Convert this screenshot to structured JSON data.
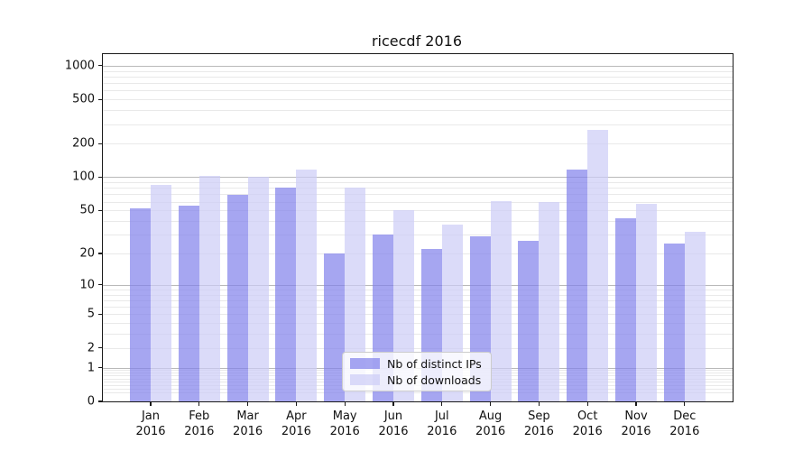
{
  "title": "ricecdf 2016",
  "colors": {
    "ips_bar": "#8080ebb3",
    "downloads_bar": "#ccccf6b3",
    "grid_major": "#b9b9b9",
    "grid_minor": "#e9e9e9",
    "axis": "#1a1a1a"
  },
  "chart_data": {
    "type": "bar",
    "title": "ricecdf 2016",
    "categories": [
      "Jan 2016",
      "Feb 2016",
      "Mar 2016",
      "Apr 2016",
      "May 2016",
      "Jun 2016",
      "Jul 2016",
      "Aug 2016",
      "Sep 2016",
      "Oct 2016",
      "Nov 2016",
      "Dec 2016"
    ],
    "series": [
      {
        "name": "Nb of distinct IPs",
        "values": [
          52,
          55,
          69,
          81,
          20,
          30,
          22,
          29,
          26,
          116,
          42,
          25
        ]
      },
      {
        "name": "Nb of downloads",
        "values": [
          85,
          103,
          100,
          117,
          80,
          50,
          37,
          61,
          59,
          268,
          57,
          32
        ]
      }
    ],
    "yscale": "log1p",
    "yticks": [
      0,
      1,
      2,
      5,
      10,
      20,
      50,
      100,
      200,
      500,
      1000
    ],
    "ylim": [
      0,
      1270
    ],
    "xlabel": "",
    "ylabel": "",
    "grid": true,
    "legend_position": "lower center"
  }
}
